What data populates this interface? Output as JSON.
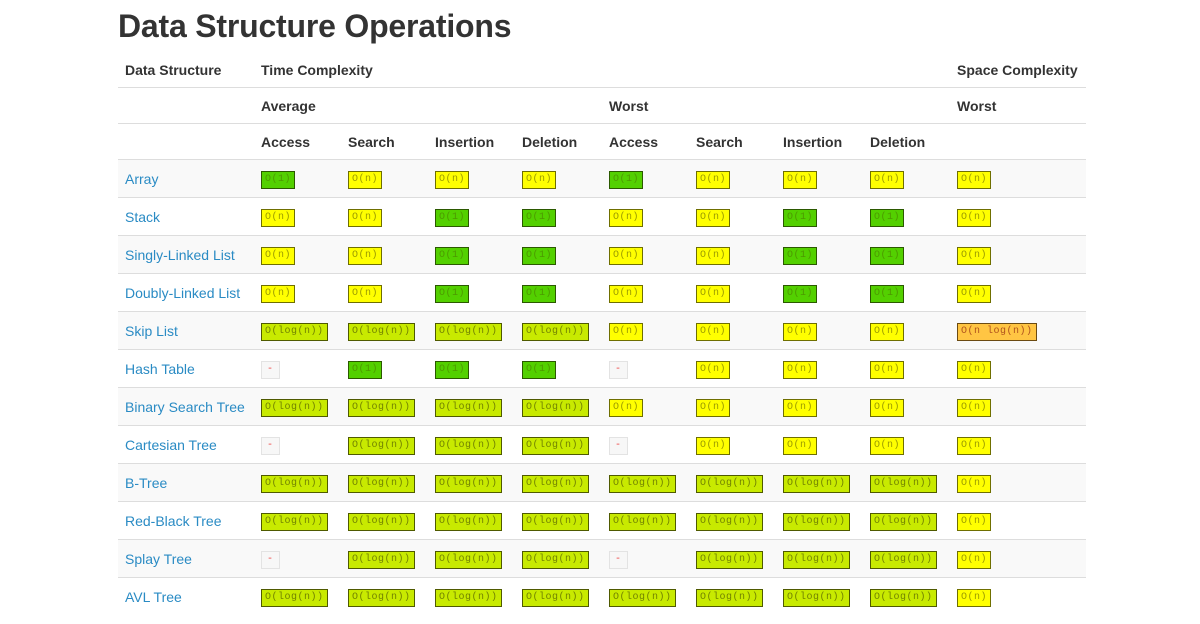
{
  "title": "Data Structure Operations",
  "headers": {
    "data_structure": "Data Structure",
    "time_complexity": "Time Complexity",
    "space_complexity": "Space Complexity",
    "average": "Average",
    "worst": "Worst",
    "space_worst": "Worst",
    "ops": [
      "Access",
      "Search",
      "Insertion",
      "Deletion",
      "Access",
      "Search",
      "Insertion",
      "Deletion"
    ]
  },
  "complexity_colors": {
    "green": "#53d000",
    "lime": "#c8ea00",
    "yellow": "#ffff00",
    "orange": "#ffc543",
    "gray": "#f7f7f7"
  },
  "rows": [
    {
      "name": "Array",
      "cells": [
        {
          "t": "O(1)",
          "c": "green"
        },
        {
          "t": "O(n)",
          "c": "yellow"
        },
        {
          "t": "O(n)",
          "c": "yellow"
        },
        {
          "t": "O(n)",
          "c": "yellow"
        },
        {
          "t": "O(1)",
          "c": "green"
        },
        {
          "t": "O(n)",
          "c": "yellow"
        },
        {
          "t": "O(n)",
          "c": "yellow"
        },
        {
          "t": "O(n)",
          "c": "yellow"
        },
        {
          "t": "O(n)",
          "c": "yellow"
        }
      ]
    },
    {
      "name": "Stack",
      "cells": [
        {
          "t": "O(n)",
          "c": "yellow"
        },
        {
          "t": "O(n)",
          "c": "yellow"
        },
        {
          "t": "O(1)",
          "c": "green"
        },
        {
          "t": "O(1)",
          "c": "green"
        },
        {
          "t": "O(n)",
          "c": "yellow"
        },
        {
          "t": "O(n)",
          "c": "yellow"
        },
        {
          "t": "O(1)",
          "c": "green"
        },
        {
          "t": "O(1)",
          "c": "green"
        },
        {
          "t": "O(n)",
          "c": "yellow"
        }
      ]
    },
    {
      "name": "Singly-Linked List",
      "cells": [
        {
          "t": "O(n)",
          "c": "yellow"
        },
        {
          "t": "O(n)",
          "c": "yellow"
        },
        {
          "t": "O(1)",
          "c": "green"
        },
        {
          "t": "O(1)",
          "c": "green"
        },
        {
          "t": "O(n)",
          "c": "yellow"
        },
        {
          "t": "O(n)",
          "c": "yellow"
        },
        {
          "t": "O(1)",
          "c": "green"
        },
        {
          "t": "O(1)",
          "c": "green"
        },
        {
          "t": "O(n)",
          "c": "yellow"
        }
      ]
    },
    {
      "name": "Doubly-Linked List",
      "cells": [
        {
          "t": "O(n)",
          "c": "yellow"
        },
        {
          "t": "O(n)",
          "c": "yellow"
        },
        {
          "t": "O(1)",
          "c": "green"
        },
        {
          "t": "O(1)",
          "c": "green"
        },
        {
          "t": "O(n)",
          "c": "yellow"
        },
        {
          "t": "O(n)",
          "c": "yellow"
        },
        {
          "t": "O(1)",
          "c": "green"
        },
        {
          "t": "O(1)",
          "c": "green"
        },
        {
          "t": "O(n)",
          "c": "yellow"
        }
      ]
    },
    {
      "name": "Skip List",
      "cells": [
        {
          "t": "O(log(n))",
          "c": "lime"
        },
        {
          "t": "O(log(n))",
          "c": "lime"
        },
        {
          "t": "O(log(n))",
          "c": "lime"
        },
        {
          "t": "O(log(n))",
          "c": "lime"
        },
        {
          "t": "O(n)",
          "c": "yellow"
        },
        {
          "t": "O(n)",
          "c": "yellow"
        },
        {
          "t": "O(n)",
          "c": "yellow"
        },
        {
          "t": "O(n)",
          "c": "yellow"
        },
        {
          "t": "O(n log(n))",
          "c": "orange"
        }
      ]
    },
    {
      "name": "Hash Table",
      "cells": [
        {
          "t": "-",
          "c": "gray"
        },
        {
          "t": "O(1)",
          "c": "green"
        },
        {
          "t": "O(1)",
          "c": "green"
        },
        {
          "t": "O(1)",
          "c": "green"
        },
        {
          "t": "-",
          "c": "gray"
        },
        {
          "t": "O(n)",
          "c": "yellow"
        },
        {
          "t": "O(n)",
          "c": "yellow"
        },
        {
          "t": "O(n)",
          "c": "yellow"
        },
        {
          "t": "O(n)",
          "c": "yellow"
        }
      ]
    },
    {
      "name": "Binary Search Tree",
      "cells": [
        {
          "t": "O(log(n))",
          "c": "lime"
        },
        {
          "t": "O(log(n))",
          "c": "lime"
        },
        {
          "t": "O(log(n))",
          "c": "lime"
        },
        {
          "t": "O(log(n))",
          "c": "lime"
        },
        {
          "t": "O(n)",
          "c": "yellow"
        },
        {
          "t": "O(n)",
          "c": "yellow"
        },
        {
          "t": "O(n)",
          "c": "yellow"
        },
        {
          "t": "O(n)",
          "c": "yellow"
        },
        {
          "t": "O(n)",
          "c": "yellow"
        }
      ]
    },
    {
      "name": "Cartesian Tree",
      "cells": [
        {
          "t": "-",
          "c": "gray"
        },
        {
          "t": "O(log(n))",
          "c": "lime"
        },
        {
          "t": "O(log(n))",
          "c": "lime"
        },
        {
          "t": "O(log(n))",
          "c": "lime"
        },
        {
          "t": "-",
          "c": "gray"
        },
        {
          "t": "O(n)",
          "c": "yellow"
        },
        {
          "t": "O(n)",
          "c": "yellow"
        },
        {
          "t": "O(n)",
          "c": "yellow"
        },
        {
          "t": "O(n)",
          "c": "yellow"
        }
      ]
    },
    {
      "name": "B-Tree",
      "cells": [
        {
          "t": "O(log(n))",
          "c": "lime"
        },
        {
          "t": "O(log(n))",
          "c": "lime"
        },
        {
          "t": "O(log(n))",
          "c": "lime"
        },
        {
          "t": "O(log(n))",
          "c": "lime"
        },
        {
          "t": "O(log(n))",
          "c": "lime"
        },
        {
          "t": "O(log(n))",
          "c": "lime"
        },
        {
          "t": "O(log(n))",
          "c": "lime"
        },
        {
          "t": "O(log(n))",
          "c": "lime"
        },
        {
          "t": "O(n)",
          "c": "yellow"
        }
      ]
    },
    {
      "name": "Red-Black Tree",
      "cells": [
        {
          "t": "O(log(n))",
          "c": "lime"
        },
        {
          "t": "O(log(n))",
          "c": "lime"
        },
        {
          "t": "O(log(n))",
          "c": "lime"
        },
        {
          "t": "O(log(n))",
          "c": "lime"
        },
        {
          "t": "O(log(n))",
          "c": "lime"
        },
        {
          "t": "O(log(n))",
          "c": "lime"
        },
        {
          "t": "O(log(n))",
          "c": "lime"
        },
        {
          "t": "O(log(n))",
          "c": "lime"
        },
        {
          "t": "O(n)",
          "c": "yellow"
        }
      ]
    },
    {
      "name": "Splay Tree",
      "cells": [
        {
          "t": "-",
          "c": "gray"
        },
        {
          "t": "O(log(n))",
          "c": "lime"
        },
        {
          "t": "O(log(n))",
          "c": "lime"
        },
        {
          "t": "O(log(n))",
          "c": "lime"
        },
        {
          "t": "-",
          "c": "gray"
        },
        {
          "t": "O(log(n))",
          "c": "lime"
        },
        {
          "t": "O(log(n))",
          "c": "lime"
        },
        {
          "t": "O(log(n))",
          "c": "lime"
        },
        {
          "t": "O(n)",
          "c": "yellow"
        }
      ]
    },
    {
      "name": "AVL Tree",
      "cells": [
        {
          "t": "O(log(n))",
          "c": "lime"
        },
        {
          "t": "O(log(n))",
          "c": "lime"
        },
        {
          "t": "O(log(n))",
          "c": "lime"
        },
        {
          "t": "O(log(n))",
          "c": "lime"
        },
        {
          "t": "O(log(n))",
          "c": "lime"
        },
        {
          "t": "O(log(n))",
          "c": "lime"
        },
        {
          "t": "O(log(n))",
          "c": "lime"
        },
        {
          "t": "O(log(n))",
          "c": "lime"
        },
        {
          "t": "O(n)",
          "c": "yellow"
        }
      ]
    }
  ]
}
